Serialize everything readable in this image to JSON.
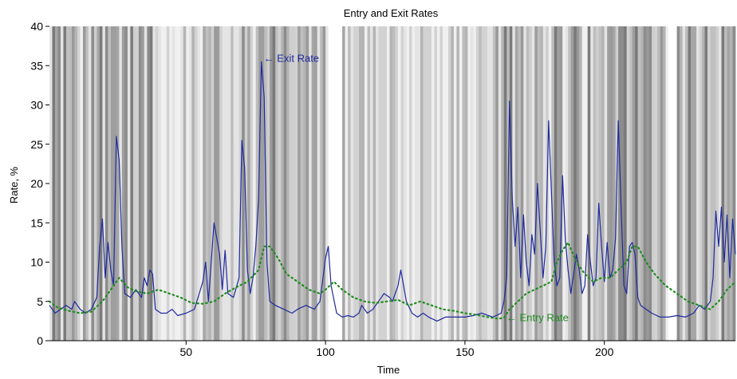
{
  "chart_data": {
    "type": "line",
    "title": "Entry and Exit Rates",
    "xlabel": "Time",
    "ylabel": "Rate, %",
    "xlim": [
      1,
      247
    ],
    "ylim": [
      0,
      40
    ],
    "x_ticks": [
      50,
      100,
      150,
      200
    ],
    "y_ticks": [
      0,
      5,
      10,
      15,
      20,
      25,
      30,
      35,
      40
    ],
    "grid": false,
    "background": "grayscale vertical shading bands across the time axis",
    "series": [
      {
        "name": "Exit Rate",
        "style": "solid",
        "color": "#1f2a9e",
        "points": [
          [
            1,
            4.5
          ],
          [
            3,
            3.5
          ],
          [
            5,
            4.0
          ],
          [
            7,
            4.5
          ],
          [
            9,
            4.0
          ],
          [
            10,
            5.0
          ],
          [
            12,
            4.0
          ],
          [
            14,
            3.5
          ],
          [
            16,
            4.0
          ],
          [
            18,
            5.5
          ],
          [
            19,
            12.0
          ],
          [
            20,
            15.5
          ],
          [
            21,
            8.0
          ],
          [
            22,
            12.5
          ],
          [
            23,
            9.0
          ],
          [
            24,
            7.0
          ],
          [
            25,
            26.0
          ],
          [
            26,
            23.0
          ],
          [
            27,
            12.0
          ],
          [
            28,
            6.0
          ],
          [
            30,
            5.5
          ],
          [
            32,
            6.5
          ],
          [
            33,
            6.0
          ],
          [
            34,
            5.5
          ],
          [
            35,
            8.0
          ],
          [
            36,
            7.0
          ],
          [
            37,
            9.0
          ],
          [
            38,
            8.5
          ],
          [
            39,
            4.0
          ],
          [
            41,
            3.5
          ],
          [
            43,
            3.5
          ],
          [
            45,
            4.0
          ],
          [
            47,
            3.2
          ],
          [
            50,
            3.5
          ],
          [
            53,
            4.0
          ],
          [
            56,
            7.5
          ],
          [
            57,
            10.0
          ],
          [
            58,
            5.0
          ],
          [
            60,
            15.0
          ],
          [
            61,
            13.0
          ],
          [
            62,
            11.0
          ],
          [
            63,
            6.5
          ],
          [
            64,
            11.5
          ],
          [
            65,
            6.0
          ],
          [
            67,
            5.5
          ],
          [
            69,
            8.0
          ],
          [
            70,
            25.5
          ],
          [
            71,
            22.0
          ],
          [
            72,
            9.0
          ],
          [
            73,
            6.0
          ],
          [
            74,
            8.0
          ],
          [
            75,
            12.0
          ],
          [
            76,
            18.0
          ],
          [
            77,
            35.5
          ],
          [
            78,
            31.0
          ],
          [
            79,
            10.0
          ],
          [
            80,
            5.0
          ],
          [
            82,
            4.5
          ],
          [
            85,
            4.0
          ],
          [
            88,
            3.5
          ],
          [
            90,
            4.0
          ],
          [
            93,
            4.5
          ],
          [
            96,
            4.0
          ],
          [
            98,
            5.0
          ],
          [
            100,
            10.5
          ],
          [
            101,
            12.0
          ],
          [
            102,
            7.0
          ],
          [
            104,
            3.5
          ],
          [
            106,
            3.0
          ],
          [
            108,
            3.2
          ],
          [
            110,
            3.0
          ],
          [
            112,
            3.5
          ],
          [
            113,
            4.5
          ],
          [
            115,
            3.5
          ],
          [
            117,
            4.0
          ],
          [
            119,
            5.0
          ],
          [
            121,
            6.0
          ],
          [
            123,
            5.5
          ],
          [
            124,
            5.0
          ],
          [
            126,
            7.0
          ],
          [
            127,
            9.0
          ],
          [
            128,
            7.0
          ],
          [
            129,
            5.0
          ],
          [
            131,
            3.5
          ],
          [
            133,
            3.0
          ],
          [
            135,
            3.5
          ],
          [
            137,
            3.0
          ],
          [
            140,
            2.5
          ],
          [
            143,
            3.0
          ],
          [
            146,
            3.0
          ],
          [
            150,
            3.0
          ],
          [
            153,
            3.2
          ],
          [
            156,
            3.5
          ],
          [
            160,
            3.0
          ],
          [
            163,
            3.5
          ],
          [
            164,
            5.0
          ],
          [
            165,
            8.0
          ],
          [
            166,
            30.5
          ],
          [
            167,
            18.0
          ],
          [
            168,
            12.0
          ],
          [
            169,
            17.0
          ],
          [
            170,
            8.0
          ],
          [
            171,
            16.0
          ],
          [
            172,
            10.0
          ],
          [
            173,
            7.0
          ],
          [
            174,
            13.5
          ],
          [
            175,
            11.0
          ],
          [
            176,
            20.0
          ],
          [
            177,
            14.0
          ],
          [
            178,
            8.0
          ],
          [
            179,
            12.0
          ],
          [
            180,
            28.0
          ],
          [
            181,
            19.0
          ],
          [
            182,
            10.0
          ],
          [
            183,
            7.0
          ],
          [
            184,
            8.0
          ],
          [
            185,
            21.0
          ],
          [
            186,
            13.0
          ],
          [
            187,
            9.0
          ],
          [
            188,
            6.0
          ],
          [
            189,
            8.5
          ],
          [
            190,
            11.0
          ],
          [
            191,
            9.0
          ],
          [
            192,
            6.0
          ],
          [
            193,
            7.0
          ],
          [
            194,
            13.5
          ],
          [
            195,
            10.0
          ],
          [
            196,
            7.0
          ],
          [
            197,
            8.0
          ],
          [
            198,
            17.5
          ],
          [
            199,
            12.0
          ],
          [
            200,
            7.5
          ],
          [
            201,
            12.5
          ],
          [
            202,
            8.0
          ],
          [
            203,
            9.0
          ],
          [
            204,
            13.0
          ],
          [
            205,
            28.0
          ],
          [
            206,
            17.0
          ],
          [
            207,
            7.0
          ],
          [
            208,
            6.0
          ],
          [
            209,
            12.0
          ],
          [
            210,
            12.5
          ],
          [
            211,
            11.0
          ],
          [
            212,
            5.5
          ],
          [
            213,
            4.5
          ],
          [
            215,
            4.0
          ],
          [
            217,
            3.5
          ],
          [
            220,
            3.0
          ],
          [
            223,
            3.0
          ],
          [
            226,
            3.2
          ],
          [
            229,
            3.0
          ],
          [
            232,
            3.5
          ],
          [
            234,
            4.5
          ],
          [
            236,
            4.0
          ],
          [
            238,
            5.0
          ],
          [
            239,
            8.0
          ],
          [
            240,
            16.5
          ],
          [
            241,
            12.0
          ],
          [
            242,
            17.0
          ],
          [
            243,
            10.0
          ],
          [
            244,
            16.0
          ],
          [
            245,
            8.0
          ],
          [
            246,
            15.5
          ],
          [
            247,
            11.0
          ]
        ]
      },
      {
        "name": "Entry Rate",
        "style": "dotted",
        "color": "#1f8c1f",
        "points": [
          [
            1,
            5.0
          ],
          [
            4,
            4.2
          ],
          [
            8,
            3.8
          ],
          [
            12,
            3.5
          ],
          [
            16,
            3.7
          ],
          [
            20,
            5.0
          ],
          [
            23,
            6.5
          ],
          [
            26,
            8.0
          ],
          [
            29,
            6.8
          ],
          [
            32,
            6.3
          ],
          [
            36,
            6.0
          ],
          [
            40,
            6.5
          ],
          [
            44,
            6.0
          ],
          [
            48,
            5.5
          ],
          [
            52,
            4.8
          ],
          [
            56,
            4.7
          ],
          [
            60,
            5.0
          ],
          [
            64,
            6.0
          ],
          [
            68,
            6.8
          ],
          [
            72,
            7.5
          ],
          [
            76,
            9.0
          ],
          [
            78,
            12.0
          ],
          [
            80,
            12.0
          ],
          [
            83,
            10.5
          ],
          [
            86,
            8.5
          ],
          [
            90,
            7.5
          ],
          [
            94,
            6.5
          ],
          [
            98,
            6.0
          ],
          [
            100,
            6.5
          ],
          [
            103,
            7.5
          ],
          [
            106,
            6.5
          ],
          [
            110,
            5.5
          ],
          [
            114,
            5.0
          ],
          [
            118,
            4.8
          ],
          [
            122,
            5.0
          ],
          [
            126,
            5.2
          ],
          [
            130,
            4.5
          ],
          [
            134,
            5.0
          ],
          [
            138,
            4.5
          ],
          [
            142,
            4.0
          ],
          [
            146,
            3.8
          ],
          [
            150,
            3.5
          ],
          [
            154,
            3.3
          ],
          [
            158,
            3.0
          ],
          [
            162,
            2.8
          ],
          [
            164,
            2.9
          ],
          [
            166,
            4.0
          ],
          [
            169,
            5.0
          ],
          [
            172,
            6.0
          ],
          [
            175,
            6.5
          ],
          [
            178,
            7.0
          ],
          [
            181,
            7.5
          ],
          [
            183,
            10.0
          ],
          [
            185,
            11.5
          ],
          [
            187,
            12.5
          ],
          [
            190,
            10.0
          ],
          [
            193,
            8.5
          ],
          [
            196,
            7.5
          ],
          [
            199,
            8.0
          ],
          [
            202,
            8.0
          ],
          [
            205,
            9.0
          ],
          [
            208,
            10.0
          ],
          [
            210,
            12.0
          ],
          [
            212,
            12.0
          ],
          [
            215,
            10.0
          ],
          [
            218,
            8.5
          ],
          [
            222,
            7.0
          ],
          [
            226,
            6.0
          ],
          [
            230,
            5.0
          ],
          [
            234,
            4.5
          ],
          [
            238,
            4.0
          ],
          [
            241,
            5.0
          ],
          [
            244,
            6.5
          ],
          [
            247,
            7.5
          ]
        ]
      }
    ],
    "annotations": [
      {
        "text": "← Exit Rate",
        "x": 77,
        "y": 36
      },
      {
        "text": "← Entry Rate",
        "x": 164,
        "y": 3
      }
    ]
  }
}
